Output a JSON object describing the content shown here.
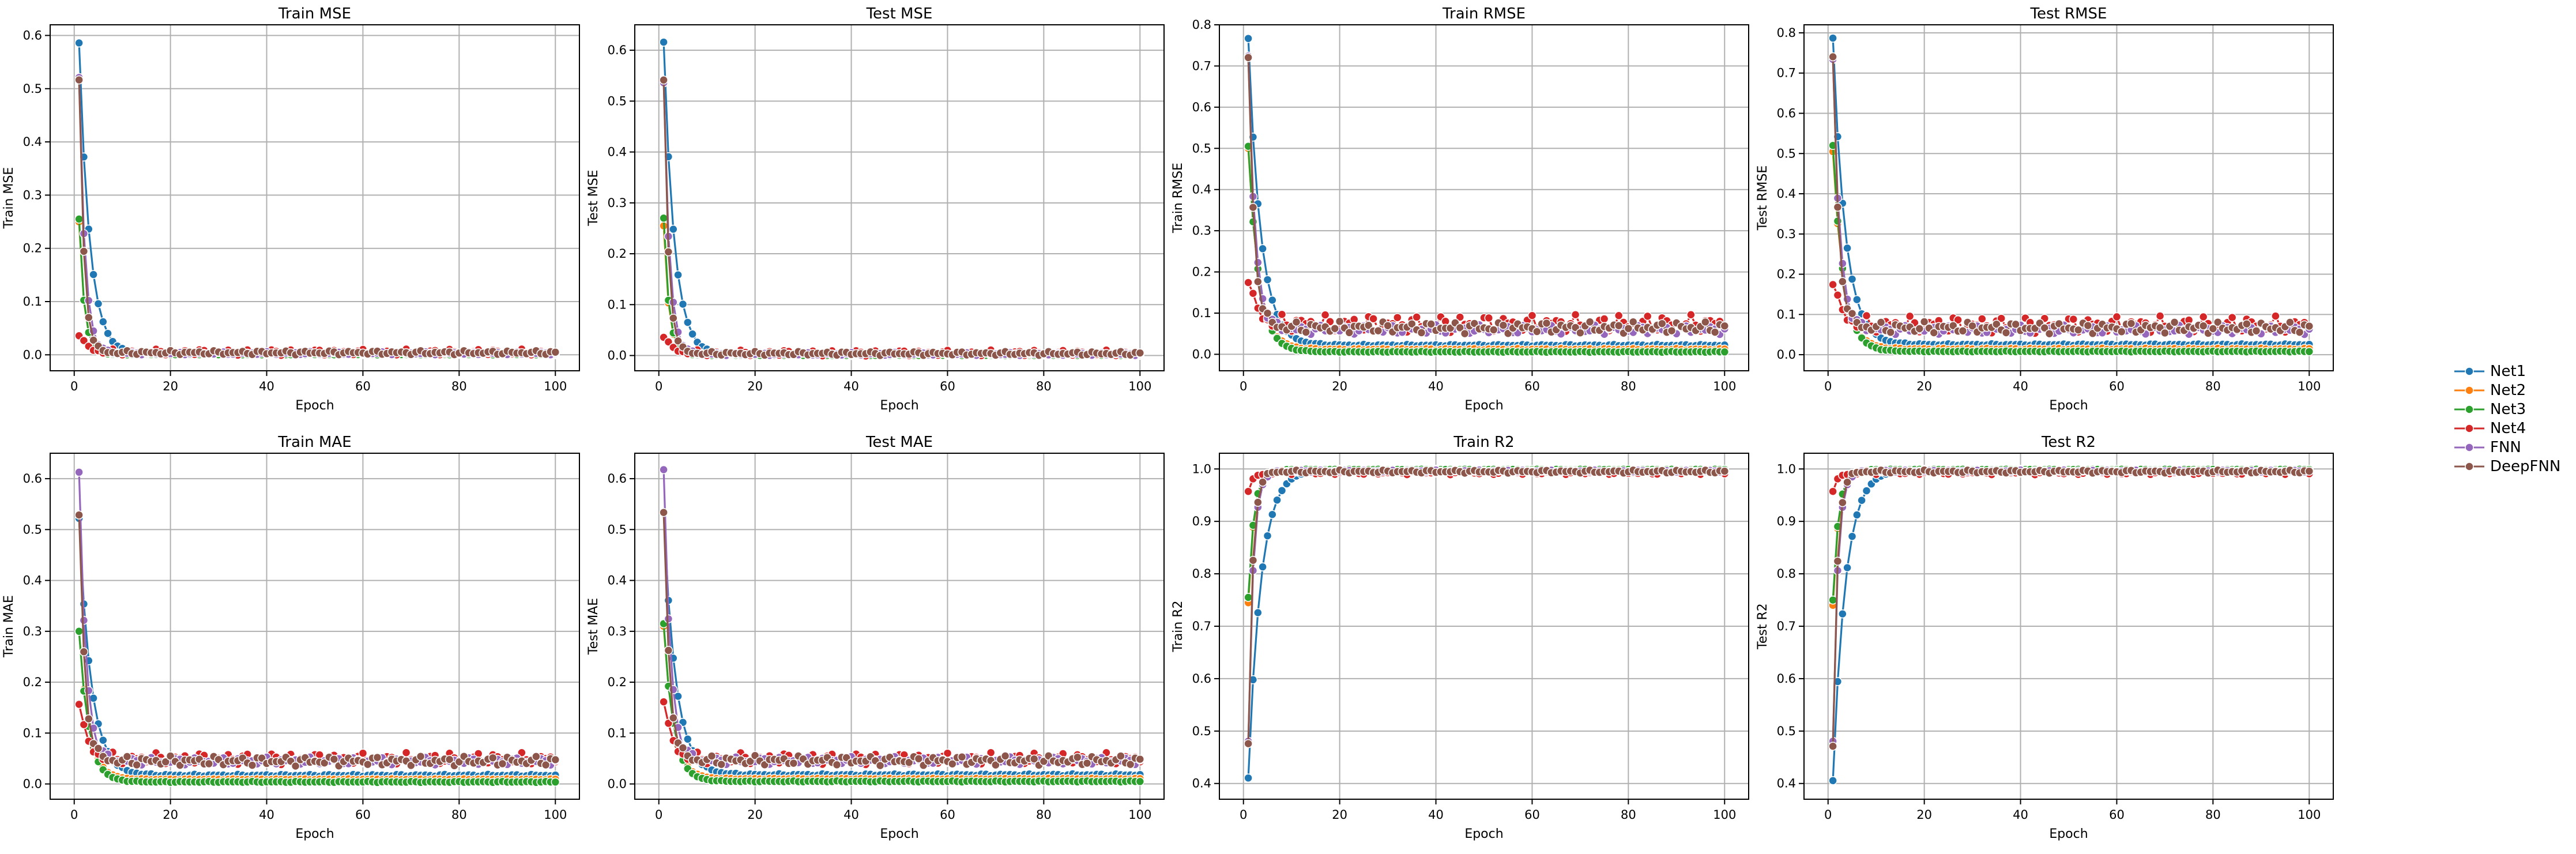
{
  "legend": {
    "series": [
      {
        "name": "Net1",
        "color": "#1f77b4"
      },
      {
        "name": "Net2",
        "color": "#ff7f0e"
      },
      {
        "name": "Net3",
        "color": "#2ca02c"
      },
      {
        "name": "Net4",
        "color": "#d62728"
      },
      {
        "name": "FNN",
        "color": "#9467bd"
      },
      {
        "name": "DeepFNN",
        "color": "#8c564b"
      }
    ]
  },
  "chart_data": [
    {
      "type": "line",
      "title": "Train MSE",
      "xlabel": "Epoch",
      "ylabel": "Train MSE",
      "xlim": [
        0,
        100
      ],
      "ylim": [
        -0.03,
        0.62
      ],
      "xticks": [
        0,
        20,
        40,
        60,
        80,
        100
      ],
      "yticks": [
        0,
        0.1,
        0.2,
        0.3,
        0.4,
        0.5,
        0.6
      ],
      "grid": true,
      "series": [
        {
          "name": "Net1",
          "start": 0.585,
          "end": 0.0015,
          "decay": 2.2,
          "noise": 0.001
        },
        {
          "name": "Net2",
          "start": 0.25,
          "end": 0.001,
          "decay": 1.1,
          "noise": 0.001
        },
        {
          "name": "Net3",
          "start": 0.255,
          "end": 0.0005,
          "decay": 1.1,
          "noise": 0.0005
        },
        {
          "name": "Net4",
          "start": 0.04,
          "end": 0.005,
          "decay": 1.5,
          "noise": 0.006
        },
        {
          "name": "FNN",
          "start": 0.52,
          "end": 0.003,
          "decay": 1.2,
          "noise": 0.003
        },
        {
          "name": "DeepFNN",
          "start": 0.515,
          "end": 0.004,
          "decay": 1.0,
          "noise": 0.004
        }
      ]
    },
    {
      "type": "line",
      "title": "Test MSE",
      "xlabel": "Epoch",
      "ylabel": "Test MSE",
      "xlim": [
        0,
        100
      ],
      "ylim": [
        -0.03,
        0.65
      ],
      "xticks": [
        0,
        20,
        40,
        60,
        80,
        100
      ],
      "yticks": [
        0,
        0.1,
        0.2,
        0.3,
        0.4,
        0.5,
        0.6
      ],
      "grid": true,
      "series": [
        {
          "name": "Net1",
          "start": 0.615,
          "end": 0.0015,
          "decay": 2.2,
          "noise": 0.001
        },
        {
          "name": "Net2",
          "start": 0.255,
          "end": 0.001,
          "decay": 1.1,
          "noise": 0.001
        },
        {
          "name": "Net3",
          "start": 0.27,
          "end": 0.0005,
          "decay": 1.1,
          "noise": 0.0005
        },
        {
          "name": "Net4",
          "start": 0.04,
          "end": 0.005,
          "decay": 1.5,
          "noise": 0.006
        },
        {
          "name": "FNN",
          "start": 0.535,
          "end": 0.003,
          "decay": 1.2,
          "noise": 0.003
        },
        {
          "name": "DeepFNN",
          "start": 0.54,
          "end": 0.004,
          "decay": 1.0,
          "noise": 0.004
        }
      ]
    },
    {
      "type": "line",
      "title": "Train RMSE",
      "xlabel": "Epoch",
      "ylabel": "Train RMSE",
      "xlim": [
        0,
        100
      ],
      "ylim": [
        -0.04,
        0.8
      ],
      "xticks": [
        0,
        20,
        40,
        60,
        80,
        100
      ],
      "yticks": [
        0,
        0.1,
        0.2,
        0.3,
        0.4,
        0.5,
        0.6,
        0.7,
        0.8
      ],
      "grid": true,
      "series": [
        {
          "name": "Net1",
          "start": 0.765,
          "end": 0.022,
          "decay": 2.6,
          "noise": 0.002
        },
        {
          "name": "Net2",
          "start": 0.5,
          "end": 0.012,
          "decay": 2.2,
          "noise": 0.002
        },
        {
          "name": "Net3",
          "start": 0.505,
          "end": 0.006,
          "decay": 2.2,
          "noise": 0.001
        },
        {
          "name": "Net4",
          "start": 0.19,
          "end": 0.075,
          "decay": 1.5,
          "noise": 0.022
        },
        {
          "name": "FNN",
          "start": 0.72,
          "end": 0.06,
          "decay": 1.4,
          "noise": 0.012
        },
        {
          "name": "DeepFNN",
          "start": 0.715,
          "end": 0.065,
          "decay": 1.2,
          "noise": 0.015
        }
      ]
    },
    {
      "type": "line",
      "title": "Test RMSE",
      "xlabel": "Epoch",
      "ylabel": "Test RMSE",
      "xlim": [
        0,
        100
      ],
      "ylim": [
        -0.04,
        0.82
      ],
      "xticks": [
        0,
        20,
        40,
        60,
        80,
        100
      ],
      "yticks": [
        0,
        0.1,
        0.2,
        0.3,
        0.4,
        0.5,
        0.6,
        0.7,
        0.8
      ],
      "grid": true,
      "series": [
        {
          "name": "Net1",
          "start": 0.785,
          "end": 0.025,
          "decay": 2.6,
          "noise": 0.002
        },
        {
          "name": "Net2",
          "start": 0.505,
          "end": 0.014,
          "decay": 2.2,
          "noise": 0.002
        },
        {
          "name": "Net3",
          "start": 0.52,
          "end": 0.008,
          "decay": 2.2,
          "noise": 0.001
        },
        {
          "name": "Net4",
          "start": 0.19,
          "end": 0.075,
          "decay": 1.5,
          "noise": 0.022
        },
        {
          "name": "FNN",
          "start": 0.73,
          "end": 0.062,
          "decay": 1.4,
          "noise": 0.012
        },
        {
          "name": "DeepFNN",
          "start": 0.735,
          "end": 0.067,
          "decay": 1.2,
          "noise": 0.015
        }
      ]
    },
    {
      "type": "line",
      "title": "Train MAE",
      "xlabel": "Epoch",
      "ylabel": "Train MAE",
      "xlim": [
        0,
        100
      ],
      "ylim": [
        -0.03,
        0.65
      ],
      "xticks": [
        0,
        20,
        40,
        60,
        80,
        100
      ],
      "yticks": [
        0,
        0.1,
        0.2,
        0.3,
        0.4,
        0.5,
        0.6
      ],
      "grid": true,
      "series": [
        {
          "name": "Net1",
          "start": 0.52,
          "end": 0.017,
          "decay": 2.5,
          "noise": 0.002
        },
        {
          "name": "Net2",
          "start": 0.3,
          "end": 0.009,
          "decay": 2.0,
          "noise": 0.001
        },
        {
          "name": "Net3",
          "start": 0.3,
          "end": 0.004,
          "decay": 2.0,
          "noise": 0.001
        },
        {
          "name": "Net4",
          "start": 0.165,
          "end": 0.05,
          "decay": 1.5,
          "noise": 0.012
        },
        {
          "name": "FNN",
          "start": 0.61,
          "end": 0.045,
          "decay": 1.4,
          "noise": 0.008
        },
        {
          "name": "DeepFNN",
          "start": 0.525,
          "end": 0.045,
          "decay": 1.2,
          "noise": 0.01
        }
      ]
    },
    {
      "type": "line",
      "title": "Test MAE",
      "xlabel": "Epoch",
      "ylabel": "Test MAE",
      "xlim": [
        0,
        100
      ],
      "ylim": [
        -0.03,
        0.65
      ],
      "xticks": [
        0,
        20,
        40,
        60,
        80,
        100
      ],
      "yticks": [
        0,
        0.1,
        0.2,
        0.3,
        0.4,
        0.5,
        0.6
      ],
      "grid": true,
      "series": [
        {
          "name": "Net1",
          "start": 0.53,
          "end": 0.018,
          "decay": 2.5,
          "noise": 0.002
        },
        {
          "name": "Net2",
          "start": 0.31,
          "end": 0.01,
          "decay": 2.0,
          "noise": 0.001
        },
        {
          "name": "Net3",
          "start": 0.315,
          "end": 0.005,
          "decay": 2.0,
          "noise": 0.001
        },
        {
          "name": "Net4",
          "start": 0.17,
          "end": 0.05,
          "decay": 1.5,
          "noise": 0.012
        },
        {
          "name": "FNN",
          "start": 0.615,
          "end": 0.046,
          "decay": 1.4,
          "noise": 0.008
        },
        {
          "name": "DeepFNN",
          "start": 0.53,
          "end": 0.046,
          "decay": 1.2,
          "noise": 0.01
        }
      ]
    },
    {
      "type": "line",
      "title": "Train R2",
      "xlabel": "Epoch",
      "ylabel": "Train R2",
      "xlim": [
        0,
        100
      ],
      "ylim": [
        0.37,
        1.03
      ],
      "xticks": [
        0,
        20,
        40,
        60,
        80,
        100
      ],
      "yticks": [
        0.4,
        0.5,
        0.6,
        0.7,
        0.8,
        0.9,
        1.0
      ],
      "grid": true,
      "series": [
        {
          "name": "Net1",
          "start": 0.41,
          "end": 0.999,
          "decay": 2.6,
          "noise": 0.0005
        },
        {
          "name": "Net2",
          "start": 0.745,
          "end": 0.999,
          "decay": 1.2,
          "noise": 0.0005
        },
        {
          "name": "Net3",
          "start": 0.755,
          "end": 0.999,
          "decay": 1.2,
          "noise": 0.0005
        },
        {
          "name": "Net4",
          "start": 0.96,
          "end": 0.993,
          "decay": 1.2,
          "noise": 0.004
        },
        {
          "name": "FNN",
          "start": 0.48,
          "end": 0.996,
          "decay": 1.0,
          "noise": 0.002
        },
        {
          "name": "DeepFNN",
          "start": 0.475,
          "end": 0.995,
          "decay": 0.9,
          "noise": 0.003
        }
      ]
    },
    {
      "type": "line",
      "title": "Test R2",
      "xlabel": "Epoch",
      "ylabel": "Test R2",
      "xlim": [
        0,
        100
      ],
      "ylim": [
        0.37,
        1.03
      ],
      "xticks": [
        0,
        20,
        40,
        60,
        80,
        100
      ],
      "yticks": [
        0.4,
        0.5,
        0.6,
        0.7,
        0.8,
        0.9,
        1.0
      ],
      "grid": true,
      "series": [
        {
          "name": "Net1",
          "start": 0.405,
          "end": 0.999,
          "decay": 2.6,
          "noise": 0.0005
        },
        {
          "name": "Net2",
          "start": 0.74,
          "end": 0.999,
          "decay": 1.2,
          "noise": 0.0005
        },
        {
          "name": "Net3",
          "start": 0.75,
          "end": 0.999,
          "decay": 1.2,
          "noise": 0.0005
        },
        {
          "name": "Net4",
          "start": 0.96,
          "end": 0.993,
          "decay": 1.2,
          "noise": 0.004
        },
        {
          "name": "FNN",
          "start": 0.48,
          "end": 0.996,
          "decay": 1.0,
          "noise": 0.002
        },
        {
          "name": "DeepFNN",
          "start": 0.47,
          "end": 0.995,
          "decay": 0.9,
          "noise": 0.003
        }
      ]
    }
  ]
}
